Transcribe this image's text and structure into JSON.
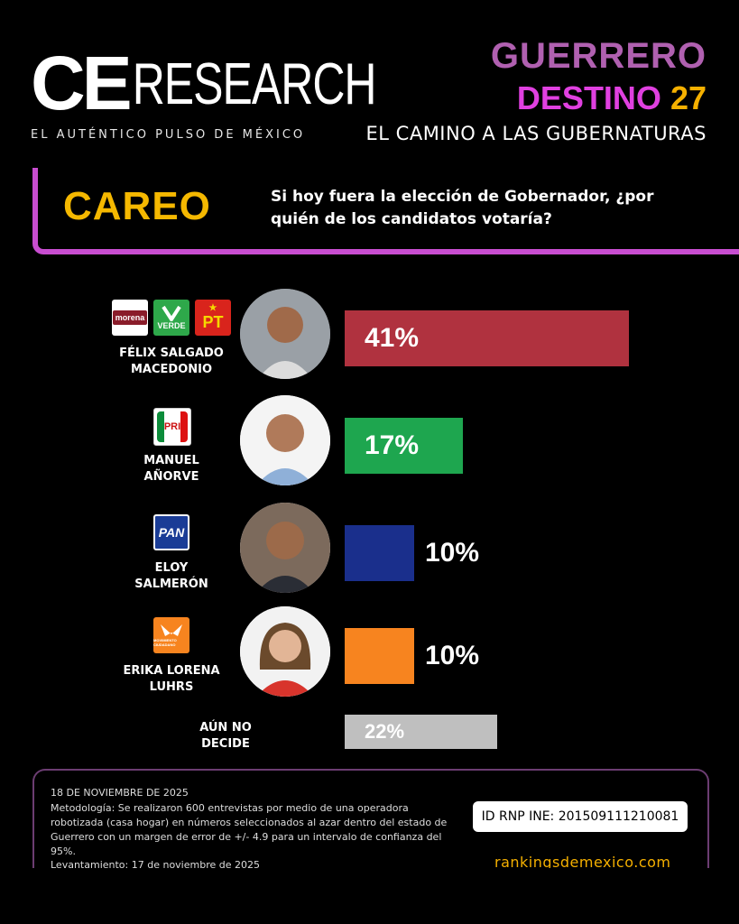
{
  "brand": {
    "logo_ce": "CE",
    "logo_research": "RESEARCH",
    "tagline": "EL AUTÉNTICO PULSO DE MÉXICO"
  },
  "header": {
    "line1": "GUERRERO",
    "line2_text": "DESTINO",
    "line2_num": "27",
    "line3": "EL CAMINO A LAS GUBERNATURAS"
  },
  "section": {
    "label": "CAREO",
    "question": "Si hoy fuera la elección de Gobernador, ¿por quién de los candidatos votaría?"
  },
  "colors": {
    "accent": "#c84dd0",
    "gold": "#f5b000",
    "red": "#b0323f",
    "green": "#1ea64f",
    "blue": "#1a2f8c",
    "orange": "#f7841f",
    "gray": "#bfbfbf"
  },
  "parties": {
    "morena": "morena",
    "verde": "VERDE",
    "pt": "PT",
    "pri": "PRI",
    "pan": "PAN",
    "mc": "MOVIMIENTO CIUDADANO"
  },
  "chart_data": {
    "type": "bar",
    "orientation": "horizontal",
    "categories": [
      "FÉLIX SALGADO MACEDONIO",
      "MANUEL AÑORVE",
      "ELOY SALMERÓN",
      "ERIKA LORENA LUHRS",
      "AÚN NO DECIDE"
    ],
    "category_lines": [
      [
        "FÉLIX SALGADO",
        "MACEDONIO"
      ],
      [
        "MANUEL",
        "AÑORVE"
      ],
      [
        "ELOY",
        "SALMERÓN"
      ],
      [
        "ERIKA LORENA",
        "LUHRS"
      ],
      [
        "AÚN NO",
        "DECIDE"
      ]
    ],
    "values": [
      41,
      17,
      10,
      10,
      22
    ],
    "value_labels": [
      "41%",
      "17%",
      "10%",
      "10%",
      "22%"
    ],
    "bar_colors": [
      "#b0323f",
      "#1ea64f",
      "#1a2f8c",
      "#f7841f",
      "#bfbfbf"
    ],
    "xlim": [
      0,
      100
    ]
  },
  "footer": {
    "date": "18 DE NOVIEMBRE DE 2025",
    "methodology": "Metodología: Se realizaron 600 entrevistas por medio de una operadora robotizada (casa hogar) en números seleccionados al azar dentro del estado de Guerrero con un margen de error de +/- 4.9 para un intervalo de confianza del 95%.",
    "levantamiento": "Levantamiento: 17 de noviembre de 2025",
    "rnp": "ID RNP INE: 2015091112​10081",
    "website": "rankingsdemexico.com"
  }
}
